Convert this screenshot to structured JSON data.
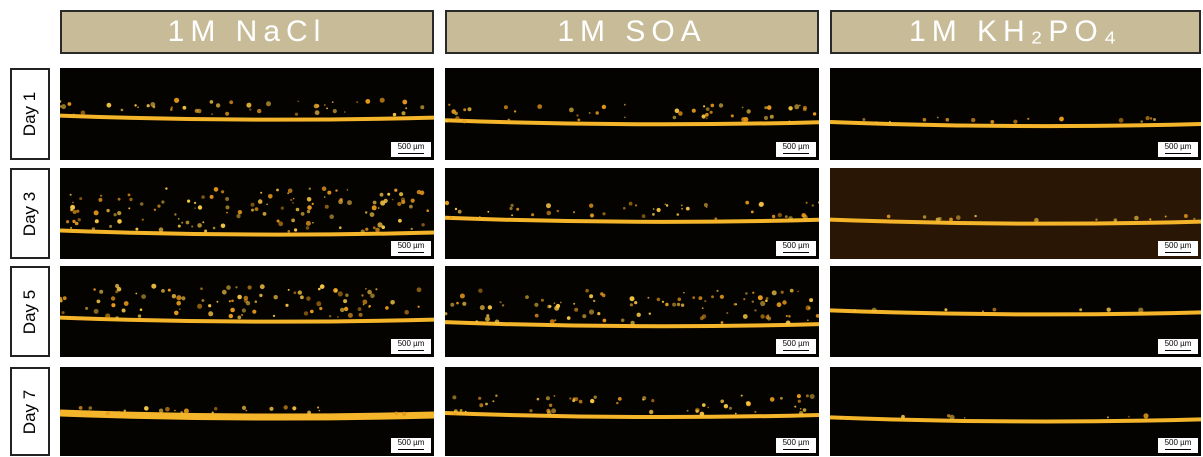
{
  "columns": [
    "1M  NaCl",
    "1M  SOA",
    "1M  KH₂PO₄"
  ],
  "rows": [
    "Day 1",
    "Day 3",
    "Day 5",
    "Day 7"
  ],
  "scale_bar": "500 µm"
}
